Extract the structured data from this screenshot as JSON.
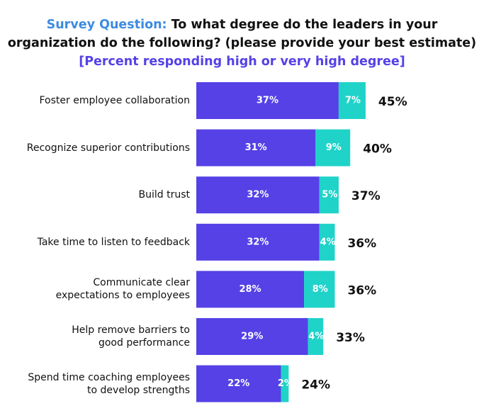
{
  "chart_data": {
    "type": "stacked-bar-horizontal",
    "title_label": "Survey Question:",
    "title": "To what degree do the leaders in your organization do the following? (please provide your best estimate)",
    "subtitle": "[Percent responding high or very high degree]",
    "categories": [
      "Foster employee collaboration",
      "Recognize superior contributions",
      "Build trust",
      "Take time to listen to feedback",
      "Communicate clear\nexpectations to employees",
      "Help remove barriers to\ngood performance",
      "Spend time coaching employees\nto develop strengths"
    ],
    "series": [
      {
        "color": "#5541e6",
        "values": [
          37,
          31,
          32,
          32,
          28,
          29,
          22
        ],
        "value_labels": [
          "37%",
          "31%",
          "32%",
          "32%",
          "28%",
          "29%",
          "22%"
        ]
      },
      {
        "color": "#1fd3c9",
        "values": [
          7,
          9,
          5,
          4,
          8,
          4,
          2
        ],
        "value_labels": [
          "7%",
          "9%",
          "5%",
          "4%",
          "8%",
          "4%",
          "2%"
        ]
      }
    ],
    "totals": {
      "values": [
        45,
        40,
        37,
        36,
        36,
        33,
        24
      ],
      "value_labels": [
        "45%",
        "40%",
        "37%",
        "36%",
        "36%",
        "33%",
        "24%"
      ]
    }
  }
}
